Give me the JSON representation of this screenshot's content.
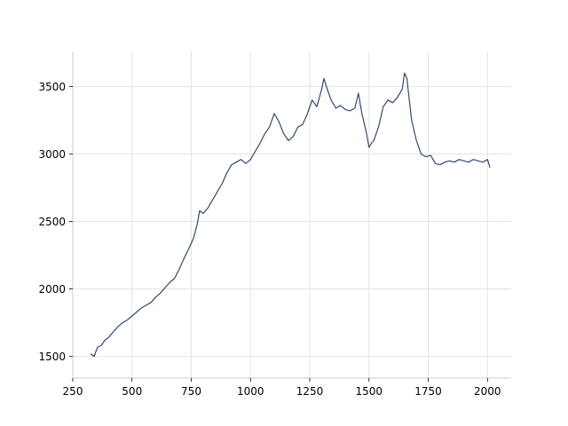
{
  "chart_data": {
    "type": "line",
    "title": "",
    "xlabel": "",
    "ylabel": "",
    "xlim": [
      250,
      2100
    ],
    "ylim": [
      1340,
      3760
    ],
    "xticks": [
      250,
      500,
      750,
      1000,
      1250,
      1500,
      1750,
      2000
    ],
    "yticks": [
      1500,
      2000,
      2500,
      3000,
      3500
    ],
    "grid": true,
    "legend": "none",
    "colors": {
      "line": "#34496b",
      "grid": "#e3e3e3",
      "spine": "#cccccc"
    },
    "series": [
      {
        "name": "",
        "x": [
          325,
          340,
          355,
          370,
          385,
          400,
          420,
          440,
          460,
          480,
          500,
          520,
          540,
          560,
          580,
          600,
          620,
          640,
          660,
          680,
          700,
          720,
          740,
          760,
          775,
          785,
          800,
          820,
          840,
          860,
          880,
          900,
          920,
          940,
          960,
          980,
          1000,
          1020,
          1040,
          1060,
          1080,
          1100,
          1120,
          1140,
          1160,
          1180,
          1200,
          1220,
          1240,
          1260,
          1280,
          1300,
          1310,
          1320,
          1340,
          1360,
          1380,
          1400,
          1420,
          1440,
          1455,
          1470,
          1490,
          1500,
          1510,
          1520,
          1540,
          1560,
          1580,
          1600,
          1620,
          1640,
          1650,
          1660,
          1670,
          1680,
          1700,
          1720,
          1740,
          1760,
          1780,
          1800,
          1820,
          1840,
          1860,
          1880,
          1900,
          1920,
          1940,
          1960,
          1980,
          2000,
          2010
        ],
        "y": [
          1520,
          1500,
          1570,
          1580,
          1620,
          1640,
          1680,
          1720,
          1750,
          1770,
          1800,
          1830,
          1860,
          1880,
          1900,
          1940,
          1970,
          2010,
          2050,
          2080,
          2150,
          2230,
          2300,
          2380,
          2480,
          2580,
          2560,
          2600,
          2660,
          2720,
          2780,
          2860,
          2920,
          2940,
          2960,
          2930,
          2960,
          3020,
          3080,
          3150,
          3200,
          3300,
          3240,
          3150,
          3100,
          3130,
          3200,
          3220,
          3300,
          3400,
          3350,
          3480,
          3560,
          3500,
          3400,
          3340,
          3360,
          3330,
          3320,
          3340,
          3450,
          3300,
          3150,
          3050,
          3080,
          3100,
          3200,
          3350,
          3400,
          3380,
          3420,
          3480,
          3600,
          3560,
          3400,
          3250,
          3100,
          3000,
          2980,
          2990,
          2930,
          2920,
          2940,
          2950,
          2940,
          2960,
          2950,
          2940,
          2960,
          2950,
          2940,
          2960,
          2900
        ]
      }
    ]
  }
}
